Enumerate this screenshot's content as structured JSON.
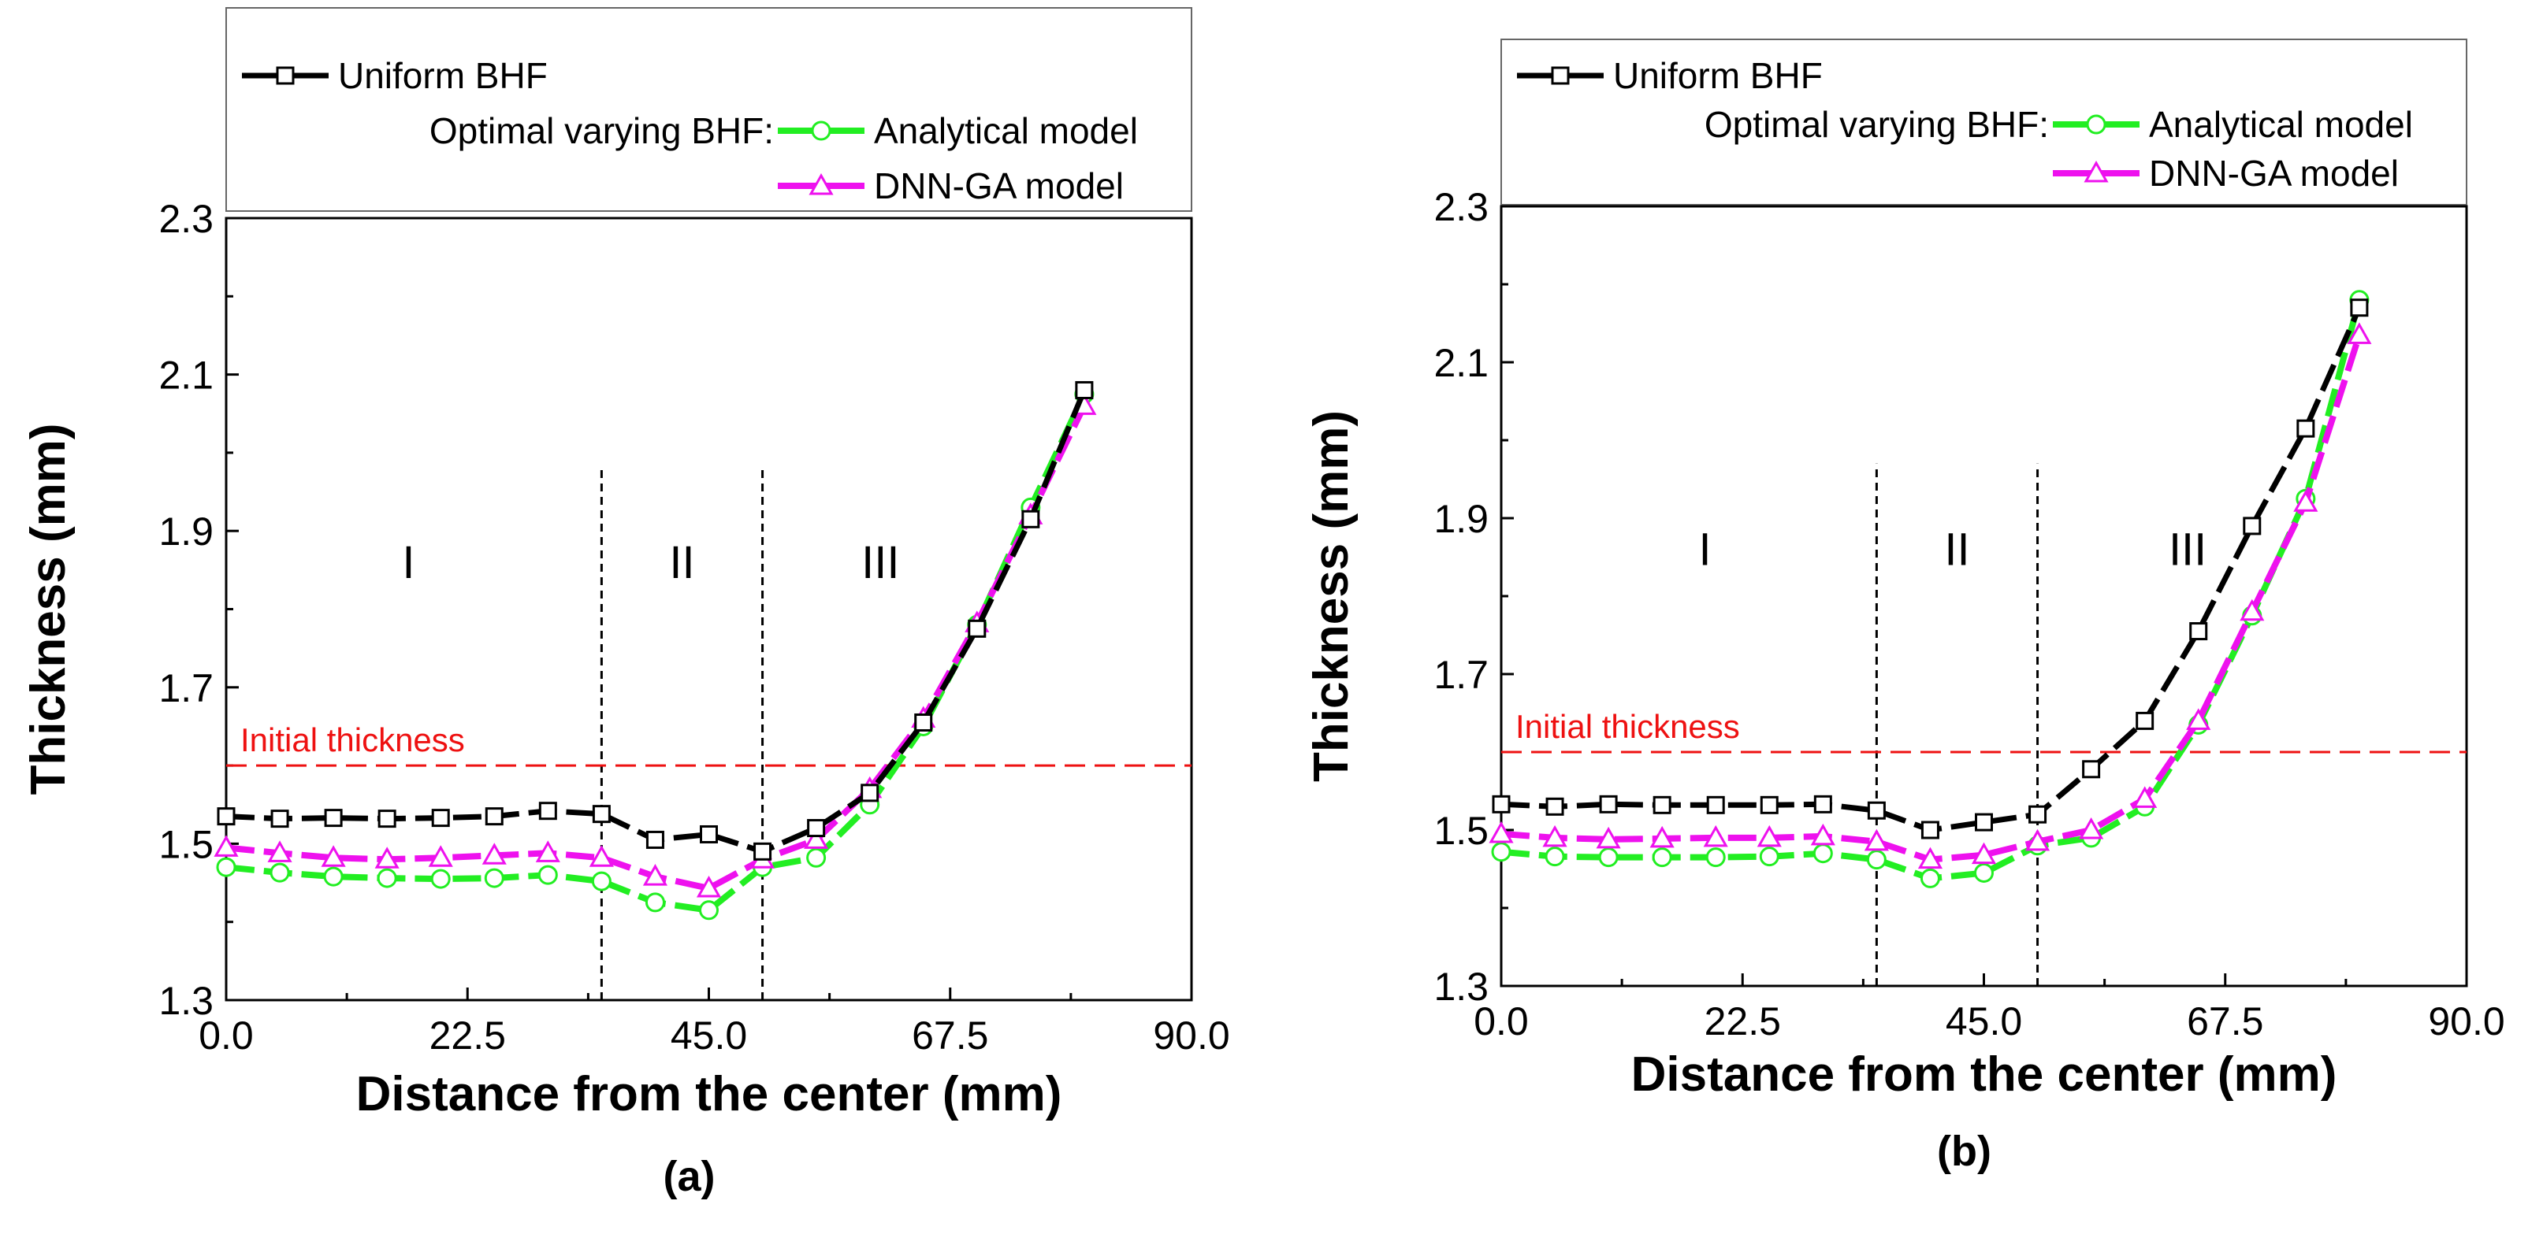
{
  "legend": {
    "uniform": "Uniform BHF",
    "optimal_prefix": "Optimal varying BHF:",
    "analytical": "Analytical model",
    "dnn": "DNN-GA model"
  },
  "colors": {
    "uniform": "#000000",
    "analytical": "#22ee22",
    "dnn": "#ee11ee",
    "initial": "#ee1111"
  },
  "chart_data": [
    {
      "type": "line",
      "caption": "(a)",
      "xlabel": "Distance from the center (mm)",
      "ylabel": "Thickness (mm)",
      "xlim": [
        0,
        90
      ],
      "ylim": [
        1.3,
        2.3
      ],
      "xticks": [
        "0.0",
        "22.5",
        "45.0",
        "67.5",
        "90.0"
      ],
      "yticks": [
        "1.3",
        "1.5",
        "1.7",
        "1.9",
        "2.1",
        "2.3"
      ],
      "grid": false,
      "legend_position": "top",
      "reference_line": {
        "label": "Initial thickness",
        "y": 1.6
      },
      "region_dividers": [
        35,
        50
      ],
      "regions": [
        {
          "label": "I",
          "x": 17
        },
        {
          "label": "II",
          "x": 42.5
        },
        {
          "label": "III",
          "x": 61
        }
      ],
      "series": [
        {
          "name": "Uniform BHF",
          "marker": "square",
          "x": [
            0,
            5,
            10,
            15,
            20,
            25,
            30,
            35,
            40,
            45,
            50,
            55,
            60,
            65,
            70,
            75,
            80
          ],
          "y": [
            1.535,
            1.532,
            1.533,
            1.532,
            1.533,
            1.535,
            1.542,
            1.538,
            1.505,
            1.512,
            1.49,
            1.52,
            1.565,
            1.655,
            1.775,
            1.915,
            2.08
          ]
        },
        {
          "name": "Analytical model",
          "marker": "circle",
          "x": [
            0,
            5,
            10,
            15,
            20,
            25,
            30,
            35,
            40,
            45,
            50,
            55,
            60,
            65,
            70,
            75,
            80
          ],
          "y": [
            1.47,
            1.463,
            1.458,
            1.456,
            1.455,
            1.456,
            1.46,
            1.452,
            1.425,
            1.415,
            1.47,
            1.482,
            1.55,
            1.65,
            1.78,
            1.93,
            2.075
          ]
        },
        {
          "name": "DNN-GA model",
          "marker": "triangle",
          "x": [
            0,
            5,
            10,
            15,
            20,
            25,
            30,
            35,
            40,
            45,
            50,
            55,
            60,
            65,
            70,
            75,
            80
          ],
          "y": [
            1.495,
            1.488,
            1.482,
            1.48,
            1.482,
            1.485,
            1.488,
            1.482,
            1.458,
            1.443,
            1.48,
            1.505,
            1.57,
            1.66,
            1.782,
            1.92,
            2.06
          ]
        }
      ]
    },
    {
      "type": "line",
      "caption": "(b)",
      "xlabel": "Distance from the center (mm)",
      "ylabel": "Thickness (mm)",
      "xlim": [
        0,
        90
      ],
      "ylim": [
        1.3,
        2.3
      ],
      "xticks": [
        "0.0",
        "22.5",
        "45.0",
        "67.5",
        "90.0"
      ],
      "yticks": [
        "1.3",
        "1.5",
        "1.7",
        "1.9",
        "2.1",
        "2.3"
      ],
      "grid": false,
      "legend_position": "top",
      "reference_line": {
        "label": "Initial thickness",
        "y": 1.6
      },
      "region_dividers": [
        35,
        50
      ],
      "regions": [
        {
          "label": "I",
          "x": 19
        },
        {
          "label": "II",
          "x": 42.5
        },
        {
          "label": "III",
          "x": 64
        }
      ],
      "series": [
        {
          "name": "Uniform BHF",
          "marker": "square",
          "x": [
            0,
            5,
            10,
            15,
            20,
            25,
            30,
            35,
            40,
            45,
            50,
            55,
            60,
            65,
            70,
            75,
            80
          ],
          "y": [
            1.533,
            1.53,
            1.533,
            1.532,
            1.532,
            1.532,
            1.533,
            1.525,
            1.5,
            1.51,
            1.52,
            1.578,
            1.64,
            1.755,
            1.89,
            2.015,
            2.17
          ]
        },
        {
          "name": "Analytical model",
          "marker": "circle",
          "x": [
            0,
            5,
            10,
            15,
            20,
            25,
            30,
            35,
            40,
            45,
            50,
            55,
            60,
            65,
            70,
            75,
            80
          ],
          "y": [
            1.472,
            1.466,
            1.465,
            1.465,
            1.465,
            1.466,
            1.47,
            1.462,
            1.438,
            1.445,
            1.48,
            1.49,
            1.53,
            1.635,
            1.775,
            1.925,
            2.18
          ]
        },
        {
          "name": "DNN-GA model",
          "marker": "triangle",
          "x": [
            0,
            5,
            10,
            15,
            20,
            25,
            30,
            35,
            40,
            45,
            50,
            55,
            60,
            65,
            70,
            75,
            80
          ],
          "y": [
            1.495,
            1.49,
            1.488,
            1.489,
            1.49,
            1.49,
            1.492,
            1.485,
            1.462,
            1.468,
            1.485,
            1.5,
            1.54,
            1.64,
            1.78,
            1.92,
            2.135
          ]
        }
      ]
    }
  ]
}
